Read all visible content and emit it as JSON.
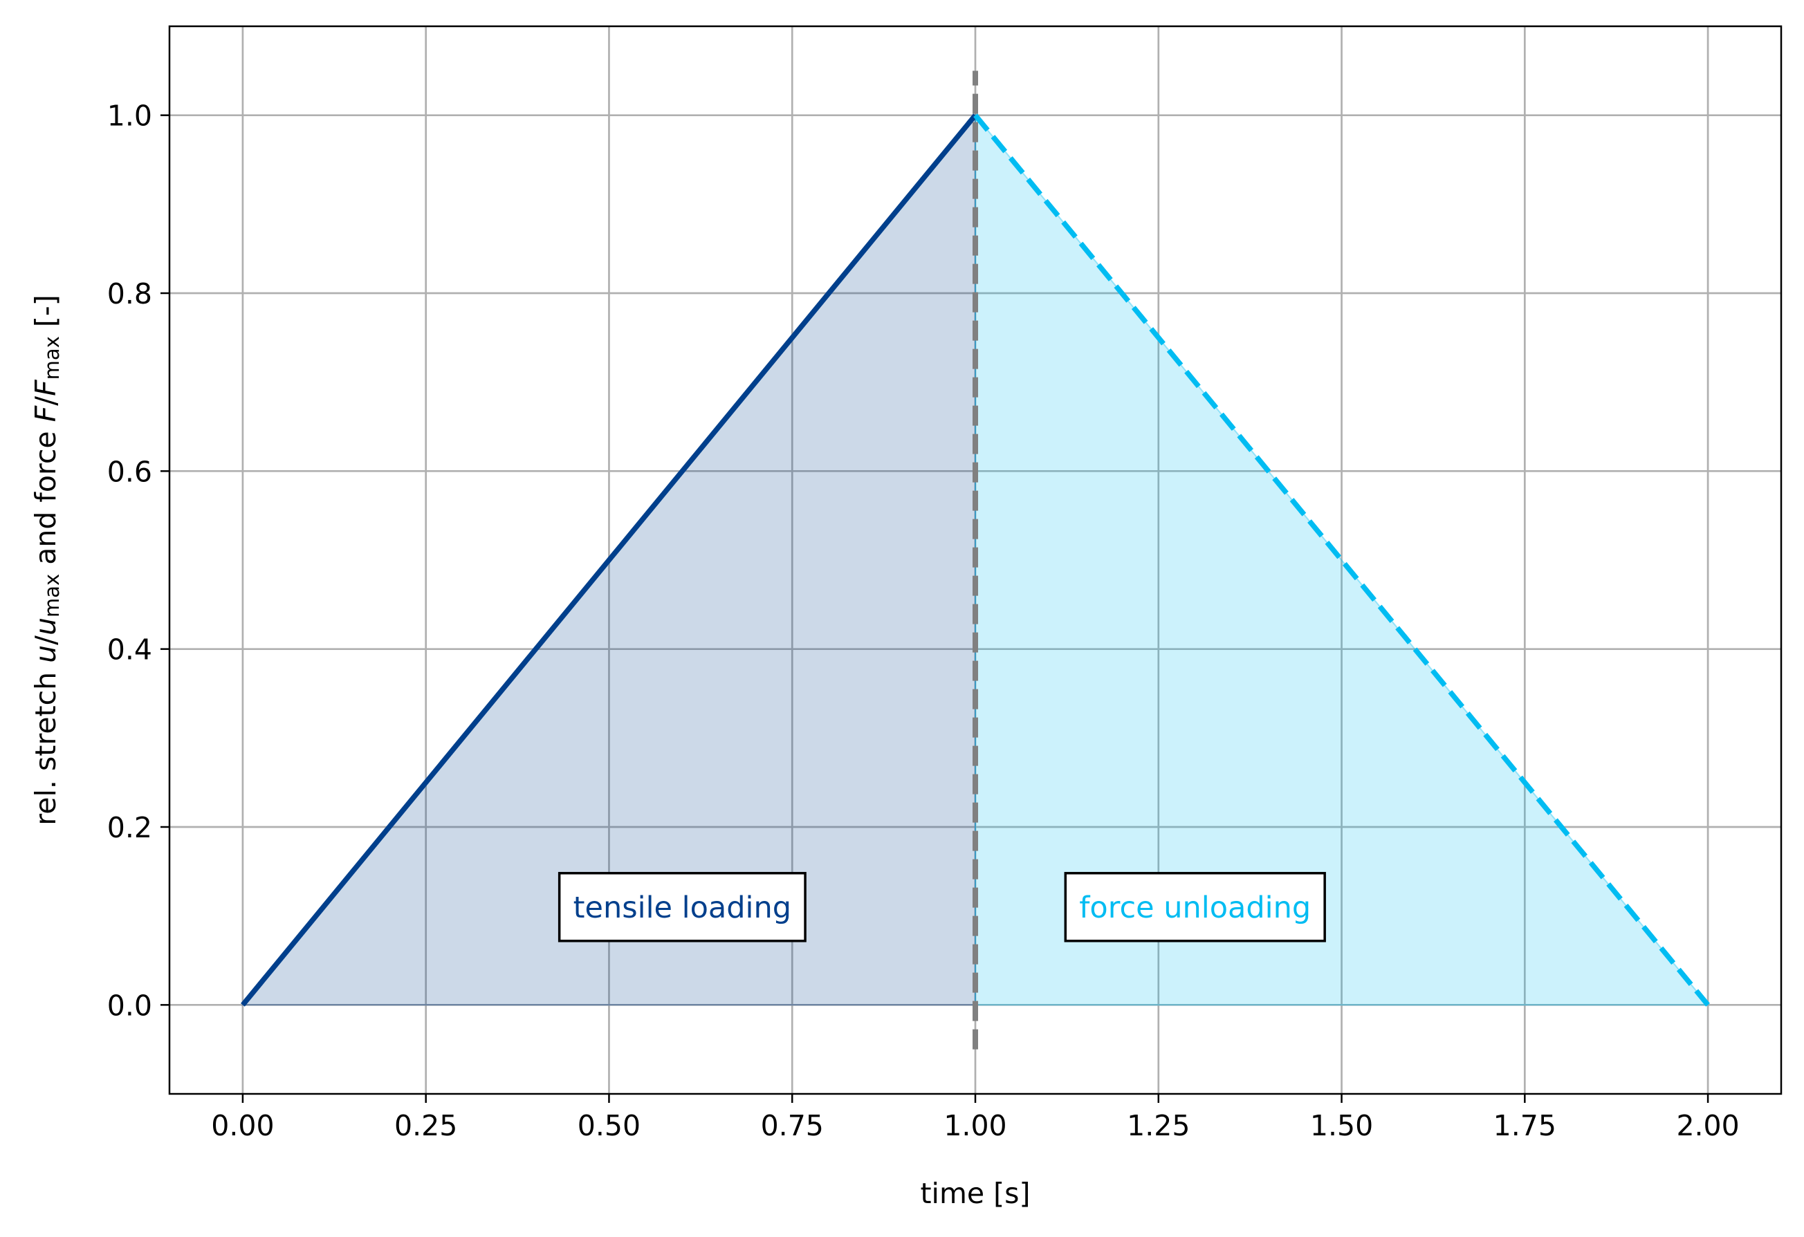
{
  "chart_data": {
    "type": "line",
    "xlabel": "time [s]",
    "ylabel": {
      "parts": [
        {
          "text": "rel. stretch ",
          "style": "normal"
        },
        {
          "text": "u",
          "style": "italic"
        },
        {
          "text": "/",
          "style": "normal"
        },
        {
          "text": "u",
          "style": "italic"
        },
        {
          "text": "max",
          "style": "sub"
        },
        {
          "text": " and force ",
          "style": "normal"
        },
        {
          "text": "F",
          "style": "italic"
        },
        {
          "text": "/",
          "style": "normal"
        },
        {
          "text": "F",
          "style": "italic"
        },
        {
          "text": "max",
          "style": "sub"
        },
        {
          "text": " [-]",
          "style": "normal"
        }
      ]
    },
    "xlim": [
      -0.1,
      2.1
    ],
    "ylim": [
      -0.1,
      1.1
    ],
    "xticks": [
      0.0,
      0.25,
      0.5,
      0.75,
      1.0,
      1.25,
      1.5,
      1.75,
      2.0
    ],
    "xtick_labels": [
      "0.00",
      "0.25",
      "0.50",
      "0.75",
      "1.00",
      "1.25",
      "1.50",
      "1.75",
      "2.00"
    ],
    "yticks": [
      0.0,
      0.2,
      0.4,
      0.6,
      0.8,
      1.0
    ],
    "ytick_labels": [
      "0.0",
      "0.2",
      "0.4",
      "0.6",
      "0.8",
      "1.0"
    ],
    "grid": true,
    "series": [
      {
        "x": [
          0.0,
          1.0
        ],
        "y": [
          0.0,
          1.0
        ],
        "color": "#003f8c",
        "linestyle": "solid",
        "fill": true,
        "fill_color": "#003f8c",
        "fill_opacity": 0.2
      },
      {
        "x": [
          1.0,
          2.0
        ],
        "y": [
          1.0,
          0.0
        ],
        "color": "#00bcf2",
        "linestyle": "dashed",
        "fill": true,
        "fill_color": "#00bcf2",
        "fill_opacity": 0.2
      }
    ],
    "vline": {
      "x": 1.0,
      "y_range": [
        -0.05,
        1.05
      ],
      "color": "#808080",
      "linestyle": "dashed"
    },
    "annotations": [
      {
        "text": "tensile loading",
        "x": 0.6,
        "y": 0.11,
        "color": "#003f8c"
      },
      {
        "text": "force unloading",
        "x": 1.3,
        "y": 0.11,
        "color": "#00bcf2"
      }
    ]
  }
}
